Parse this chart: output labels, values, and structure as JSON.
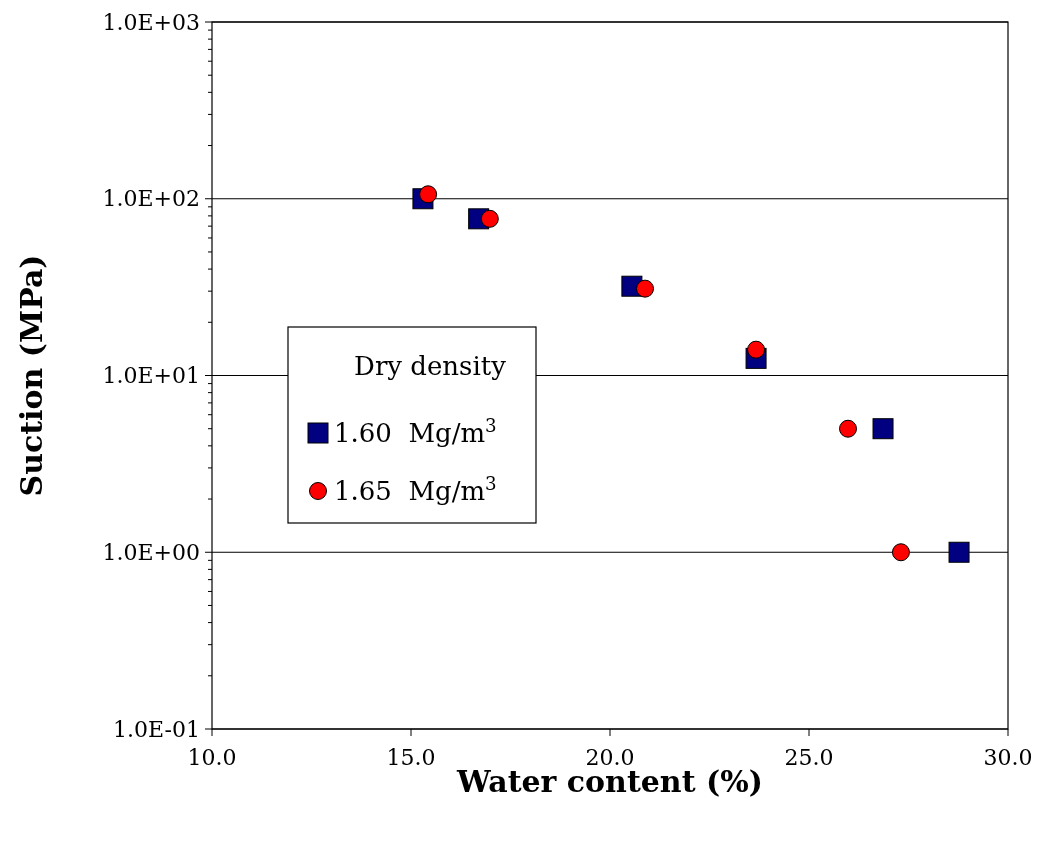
{
  "chart_data": {
    "type": "scatter",
    "xlabel": "Water content (%)",
    "ylabel": "Suction (MPa)",
    "legend_title": "Dry density",
    "legend": "left",
    "grid": "y",
    "log": "y",
    "xlim": [
      10,
      30
    ],
    "xticks": [
      {
        "value": 10,
        "label": "10.0"
      },
      {
        "value": 15,
        "label": "15.0"
      },
      {
        "value": 20,
        "label": "20.0"
      },
      {
        "value": 25,
        "label": "25.0"
      },
      {
        "value": 30,
        "label": "30.0"
      }
    ],
    "ylim": [
      0.1,
      1000
    ],
    "yticks": [
      {
        "value": 0.1,
        "label": "1.0E-01"
      },
      {
        "value": 1,
        "label": "1.0E+00"
      },
      {
        "value": 10,
        "label": "1.0E+01"
      },
      {
        "value": 100,
        "label": "1.0E+02"
      },
      {
        "value": 1000,
        "label": "1.0E+03"
      }
    ],
    "series": [
      {
        "name": "1.60  Mg/m$^{3}$",
        "color": "#000080",
        "marker": "square",
        "x": [
          15.3,
          16.7,
          20.55,
          23.67,
          26.86,
          28.77
        ],
        "values": [
          100,
          77,
          32,
          12.5,
          5,
          1
        ]
      },
      {
        "name": "1.65  Mg/m$^{3}$",
        "color": "#ff0000",
        "marker": "circle",
        "x": [
          15.43,
          16.98,
          20.88,
          23.67,
          25.98,
          27.31
        ],
        "values": [
          106,
          77,
          31,
          14,
          5,
          1
        ]
      }
    ]
  }
}
